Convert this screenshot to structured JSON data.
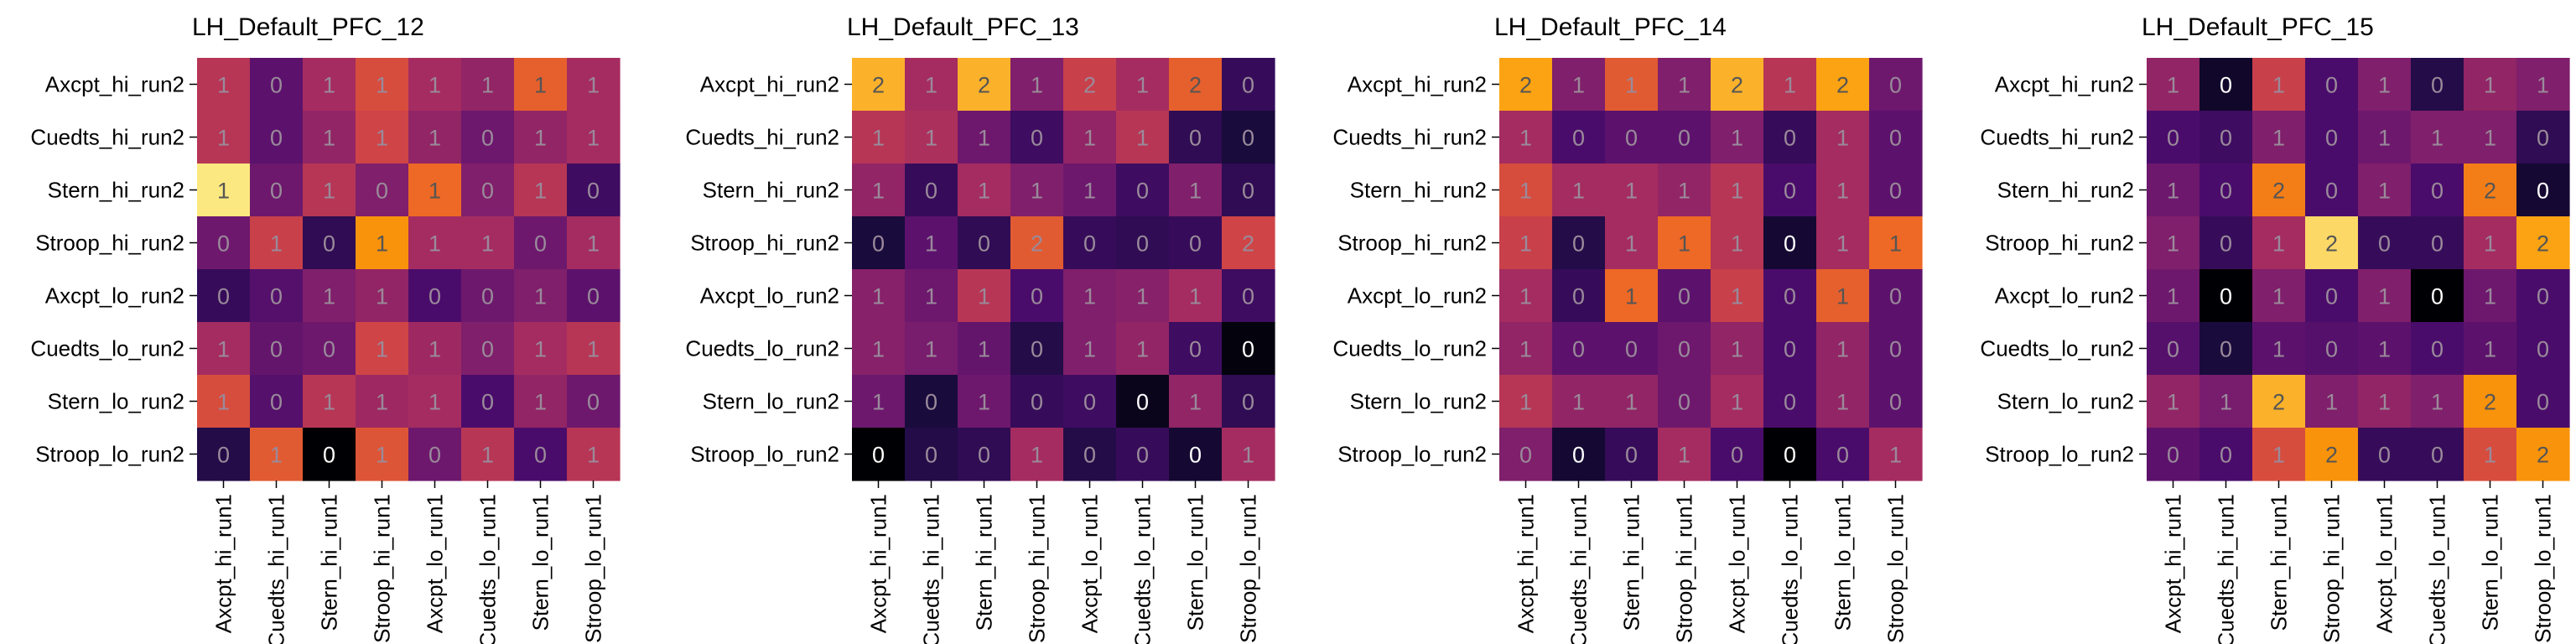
{
  "chart_data": [
    {
      "type": "heatmap",
      "title": "LH_Default_PFC_12",
      "xlabels": [
        "Axcpt_hi_run1",
        "Cuedts_hi_run1",
        "Stern_hi_run1",
        "Stroop_hi_run1",
        "Axcpt_lo_run1",
        "Cuedts_lo_run1",
        "Stern_lo_run1",
        "Stroop_lo_run1"
      ],
      "ylabels": [
        "Axcpt_hi_run2",
        "Cuedts_hi_run2",
        "Stern_hi_run2",
        "Stroop_hi_run2",
        "Axcpt_lo_run2",
        "Cuedts_lo_run2",
        "Stern_lo_run2",
        "Stroop_lo_run2"
      ],
      "annotations": [
        [
          "1",
          "0",
          "1",
          "1",
          "1",
          "1",
          "1",
          "1"
        ],
        [
          "1",
          "0",
          "1",
          "1",
          "1",
          "0",
          "1",
          "1"
        ],
        [
          "1",
          "0",
          "1",
          "0",
          "1",
          "0",
          "1",
          "0"
        ],
        [
          "0",
          "1",
          "0",
          "1",
          "1",
          "1",
          "0",
          "1"
        ],
        [
          "0",
          "0",
          "1",
          "1",
          "0",
          "0",
          "1",
          "0"
        ],
        [
          "1",
          "0",
          "0",
          "1",
          "1",
          "0",
          "1",
          "1"
        ],
        [
          "1",
          "0",
          "1",
          "1",
          "1",
          "0",
          "1",
          "0"
        ],
        [
          "0",
          "1",
          "0",
          "1",
          "0",
          "1",
          "0",
          "1"
        ]
      ],
      "values": [
        [
          0.55,
          0.3,
          0.5,
          0.65,
          0.5,
          0.45,
          0.72,
          0.5
        ],
        [
          0.55,
          0.3,
          0.45,
          0.62,
          0.45,
          0.35,
          0.45,
          0.5
        ],
        [
          0.97,
          0.35,
          0.55,
          0.4,
          0.75,
          0.4,
          0.55,
          0.22
        ],
        [
          0.35,
          0.6,
          0.18,
          0.85,
          0.5,
          0.5,
          0.35,
          0.5
        ],
        [
          0.2,
          0.28,
          0.4,
          0.45,
          0.25,
          0.35,
          0.4,
          0.3
        ],
        [
          0.5,
          0.32,
          0.35,
          0.62,
          0.48,
          0.4,
          0.5,
          0.55
        ],
        [
          0.65,
          0.28,
          0.55,
          0.48,
          0.5,
          0.25,
          0.45,
          0.35
        ],
        [
          0.15,
          0.7,
          0.0,
          0.68,
          0.35,
          0.55,
          0.25,
          0.55
        ]
      ]
    },
    {
      "type": "heatmap",
      "title": "LH_Default_PFC_13",
      "xlabels": [
        "Axcpt_hi_run1",
        "Cuedts_hi_run1",
        "Stern_hi_run1",
        "Stroop_hi_run1",
        "Axcpt_lo_run1",
        "Cuedts_lo_run1",
        "Stern_lo_run1",
        "Stroop_lo_run1"
      ],
      "ylabels": [
        "Axcpt_hi_run2",
        "Cuedts_hi_run2",
        "Stern_hi_run2",
        "Stroop_hi_run2",
        "Axcpt_lo_run2",
        "Cuedts_lo_run2",
        "Stern_lo_run2",
        "Stroop_lo_run2"
      ],
      "annotations": [
        [
          "2",
          "1",
          "2",
          "1",
          "2",
          "1",
          "2",
          "0"
        ],
        [
          "1",
          "1",
          "1",
          "0",
          "1",
          "1",
          "0",
          "0"
        ],
        [
          "1",
          "0",
          "1",
          "1",
          "1",
          "0",
          "1",
          "0"
        ],
        [
          "0",
          "1",
          "0",
          "2",
          "0",
          "0",
          "0",
          "2"
        ],
        [
          "1",
          "1",
          "1",
          "0",
          "1",
          "1",
          "1",
          "0"
        ],
        [
          "1",
          "1",
          "1",
          "0",
          "1",
          "1",
          "0",
          "0"
        ],
        [
          "1",
          "0",
          "1",
          "0",
          "0",
          "0",
          "1",
          "0"
        ],
        [
          "0",
          "0",
          "0",
          "1",
          "0",
          "0",
          "0",
          "1"
        ]
      ],
      "values": [
        [
          0.9,
          0.5,
          0.9,
          0.4,
          0.6,
          0.5,
          0.72,
          0.2
        ],
        [
          0.55,
          0.52,
          0.35,
          0.22,
          0.45,
          0.55,
          0.18,
          0.12
        ],
        [
          0.45,
          0.2,
          0.5,
          0.4,
          0.35,
          0.22,
          0.4,
          0.18
        ],
        [
          0.12,
          0.3,
          0.18,
          0.7,
          0.2,
          0.18,
          0.2,
          0.62
        ],
        [
          0.42,
          0.35,
          0.55,
          0.25,
          0.4,
          0.42,
          0.5,
          0.22
        ],
        [
          0.42,
          0.38,
          0.32,
          0.15,
          0.4,
          0.45,
          0.22,
          0.02
        ],
        [
          0.35,
          0.12,
          0.35,
          0.2,
          0.22,
          0.05,
          0.45,
          0.18
        ],
        [
          0.0,
          0.15,
          0.18,
          0.5,
          0.15,
          0.2,
          0.1,
          0.5
        ]
      ]
    },
    {
      "type": "heatmap",
      "title": "LH_Default_PFC_14",
      "xlabels": [
        "Axcpt_hi_run1",
        "Cuedts_hi_run1",
        "Stern_hi_run1",
        "Stroop_hi_run1",
        "Axcpt_lo_run1",
        "Cuedts_lo_run1",
        "Stern_lo_run1",
        "Stroop_lo_run1"
      ],
      "ylabels": [
        "Axcpt_hi_run2",
        "Cuedts_hi_run2",
        "Stern_hi_run2",
        "Stroop_hi_run2",
        "Axcpt_lo_run2",
        "Cuedts_lo_run2",
        "Stern_lo_run2",
        "Stroop_lo_run2"
      ],
      "annotations": [
        [
          "2",
          "1",
          "1",
          "1",
          "2",
          "1",
          "2",
          "0"
        ],
        [
          "1",
          "0",
          "0",
          "0",
          "1",
          "0",
          "1",
          "0"
        ],
        [
          "1",
          "1",
          "1",
          "1",
          "1",
          "0",
          "1",
          "0"
        ],
        [
          "1",
          "0",
          "1",
          "1",
          "1",
          "0",
          "1",
          "1"
        ],
        [
          "1",
          "0",
          "1",
          "0",
          "1",
          "0",
          "1",
          "0"
        ],
        [
          "1",
          "0",
          "0",
          "0",
          "1",
          "0",
          "1",
          "0"
        ],
        [
          "1",
          "1",
          "1",
          "0",
          "1",
          "0",
          "1",
          "0"
        ],
        [
          "0",
          "0",
          "0",
          "1",
          "0",
          "0",
          "0",
          "1"
        ]
      ],
      "values": [
        [
          0.88,
          0.4,
          0.7,
          0.4,
          0.9,
          0.55,
          0.88,
          0.35
        ],
        [
          0.5,
          0.25,
          0.3,
          0.3,
          0.4,
          0.2,
          0.5,
          0.3
        ],
        [
          0.65,
          0.5,
          0.5,
          0.45,
          0.55,
          0.25,
          0.5,
          0.3
        ],
        [
          0.6,
          0.15,
          0.5,
          0.75,
          0.55,
          0.1,
          0.5,
          0.75
        ],
        [
          0.5,
          0.2,
          0.75,
          0.3,
          0.6,
          0.25,
          0.72,
          0.3
        ],
        [
          0.45,
          0.3,
          0.3,
          0.35,
          0.45,
          0.25,
          0.45,
          0.3
        ],
        [
          0.55,
          0.45,
          0.45,
          0.35,
          0.5,
          0.25,
          0.45,
          0.3
        ],
        [
          0.4,
          0.1,
          0.2,
          0.5,
          0.25,
          0.0,
          0.25,
          0.5
        ]
      ]
    },
    {
      "type": "heatmap",
      "title": "LH_Default_PFC_15",
      "xlabels": [
        "Axcpt_hi_run1",
        "Cuedts_hi_run1",
        "Stern_hi_run1",
        "Stroop_hi_run1",
        "Axcpt_lo_run1",
        "Cuedts_lo_run1",
        "Stern_lo_run1",
        "Stroop_lo_run1"
      ],
      "ylabels": [
        "Axcpt_hi_run2",
        "Cuedts_hi_run2",
        "Stern_hi_run2",
        "Stroop_hi_run2",
        "Axcpt_lo_run2",
        "Cuedts_lo_run2",
        "Stern_lo_run2",
        "Stroop_lo_run2"
      ],
      "annotations": [
        [
          "1",
          "0",
          "1",
          "0",
          "1",
          "0",
          "1",
          "1"
        ],
        [
          "0",
          "0",
          "1",
          "0",
          "1",
          "1",
          "1",
          "0"
        ],
        [
          "1",
          "0",
          "2",
          "0",
          "1",
          "0",
          "2",
          "0"
        ],
        [
          "1",
          "0",
          "1",
          "2",
          "0",
          "0",
          "1",
          "2"
        ],
        [
          "1",
          "0",
          "1",
          "0",
          "1",
          "0",
          "1",
          "0"
        ],
        [
          "0",
          "0",
          "1",
          "0",
          "1",
          "0",
          "1",
          "0"
        ],
        [
          "1",
          "1",
          "2",
          "1",
          "1",
          "1",
          "2",
          "0"
        ],
        [
          "0",
          "0",
          "1",
          "2",
          "0",
          "0",
          "1",
          "2"
        ]
      ],
      "values": [
        [
          0.45,
          0.08,
          0.6,
          0.25,
          0.4,
          0.15,
          0.45,
          0.4
        ],
        [
          0.25,
          0.22,
          0.4,
          0.25,
          0.35,
          0.4,
          0.4,
          0.18
        ],
        [
          0.35,
          0.25,
          0.8,
          0.25,
          0.4,
          0.25,
          0.8,
          0.1
        ],
        [
          0.4,
          0.2,
          0.5,
          0.95,
          0.2,
          0.2,
          0.5,
          0.88
        ],
        [
          0.35,
          0.0,
          0.4,
          0.25,
          0.4,
          0.0,
          0.35,
          0.25
        ],
        [
          0.28,
          0.12,
          0.3,
          0.28,
          0.3,
          0.25,
          0.3,
          0.25
        ],
        [
          0.45,
          0.38,
          0.9,
          0.4,
          0.45,
          0.4,
          0.85,
          0.25
        ],
        [
          0.3,
          0.25,
          0.65,
          0.85,
          0.2,
          0.2,
          0.65,
          0.85
        ]
      ]
    }
  ]
}
